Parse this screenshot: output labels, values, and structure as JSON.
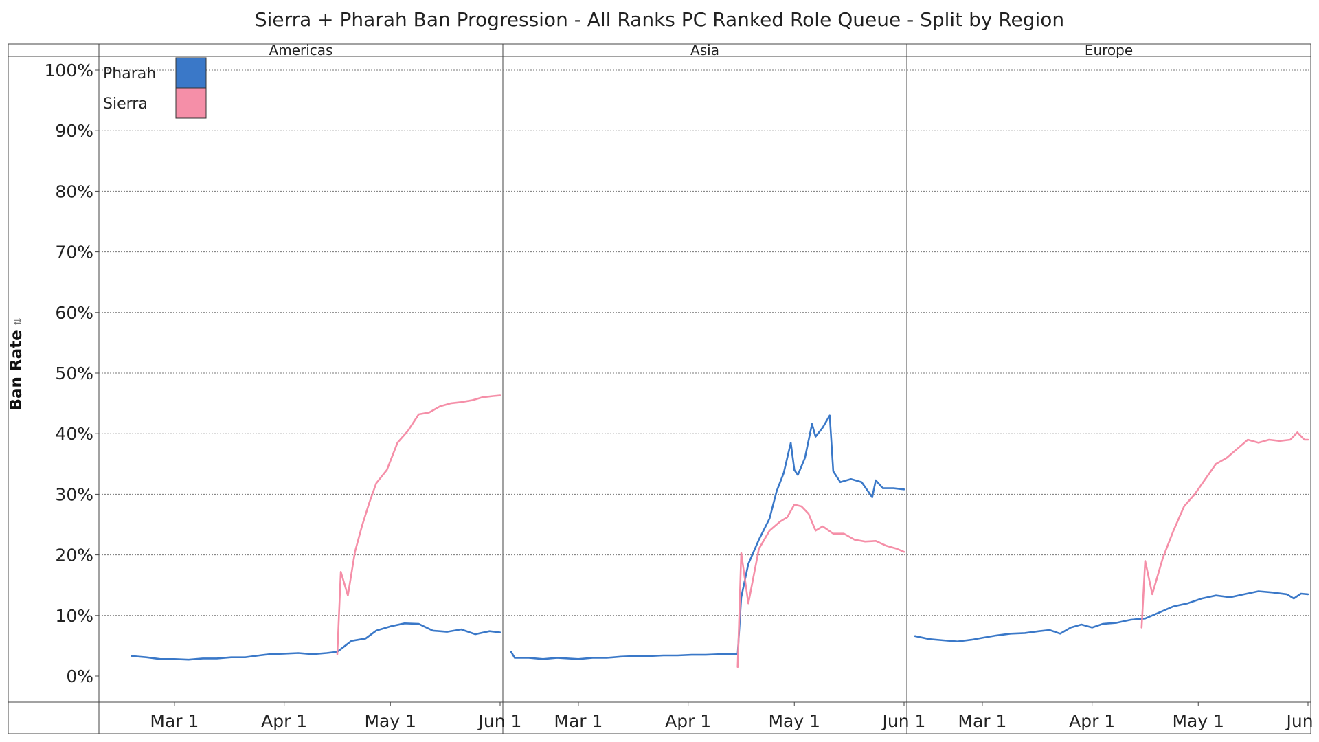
{
  "chart_data": {
    "type": "line",
    "title": "Sierra + Pharah Ban Progression - All Ranks PC Ranked Role Queue - Split by Region",
    "ylabel": "Ban Rate",
    "ylim": [
      0,
      100
    ],
    "yticks": [
      0,
      10,
      20,
      30,
      40,
      50,
      60,
      70,
      80,
      90,
      100
    ],
    "ytick_labels": [
      "0%",
      "10%",
      "20%",
      "30%",
      "40%",
      "50%",
      "60%",
      "70%",
      "80%",
      "90%",
      "100%"
    ],
    "x_start": "Feb 10",
    "x_end": "Jun 1",
    "xticks": [
      "Mar 1",
      "Apr 1",
      "May 1",
      "Jun 1"
    ],
    "gridlines": "horizontal dotted",
    "legend": {
      "position": "top-left",
      "entries": [
        {
          "name": "Pharah",
          "color": "#3a78c8"
        },
        {
          "name": "Sierra",
          "color": "#f58fa8"
        }
      ]
    },
    "panels": [
      {
        "region": "Americas",
        "series": [
          {
            "name": "Pharah",
            "color": "#3a78c8",
            "points": [
              [
                "Feb 17",
                3.3
              ],
              [
                "Feb 21",
                3.1
              ],
              [
                "Feb 25",
                2.8
              ],
              [
                "Mar 1",
                2.8
              ],
              [
                "Mar 5",
                2.7
              ],
              [
                "Mar 9",
                2.9
              ],
              [
                "Mar 13",
                2.9
              ],
              [
                "Mar 17",
                3.1
              ],
              [
                "Mar 21",
                3.1
              ],
              [
                "Mar 25",
                3.4
              ],
              [
                "Mar 28",
                3.6
              ],
              [
                "Apr 1",
                3.7
              ],
              [
                "Apr 5",
                3.8
              ],
              [
                "Apr 9",
                3.6
              ],
              [
                "Apr 13",
                3.8
              ],
              [
                "Apr 16",
                4.0
              ],
              [
                "Apr 20",
                5.8
              ],
              [
                "Apr 24",
                6.2
              ],
              [
                "Apr 27",
                7.5
              ],
              [
                "May 1",
                8.2
              ],
              [
                "May 5",
                8.7
              ],
              [
                "May 9",
                8.6
              ],
              [
                "May 13",
                7.5
              ],
              [
                "May 17",
                7.3
              ],
              [
                "May 21",
                7.7
              ],
              [
                "May 25",
                6.9
              ],
              [
                "May 29",
                7.4
              ],
              [
                "Jun 1",
                7.2
              ]
            ]
          },
          {
            "name": "Sierra",
            "color": "#f58fa8",
            "points": [
              [
                "Apr 16",
                3.6
              ],
              [
                "Apr 17",
                17.2
              ],
              [
                "Apr 19",
                13.3
              ],
              [
                "Apr 21",
                20.5
              ],
              [
                "Apr 23",
                24.8
              ],
              [
                "Apr 25",
                28.5
              ],
              [
                "Apr 27",
                31.8
              ],
              [
                "Apr 30",
                34.0
              ],
              [
                "May 3",
                38.5
              ],
              [
                "May 6",
                40.5
              ],
              [
                "May 9",
                43.2
              ],
              [
                "May 12",
                43.5
              ],
              [
                "May 15",
                44.5
              ],
              [
                "May 18",
                45.0
              ],
              [
                "May 21",
                45.2
              ],
              [
                "May 24",
                45.5
              ],
              [
                "May 27",
                46.0
              ],
              [
                "May 30",
                46.2
              ],
              [
                "Jun 1",
                46.3
              ]
            ]
          }
        ]
      },
      {
        "region": "Asia",
        "series": [
          {
            "name": "Pharah",
            "color": "#3a78c8",
            "points": [
              [
                "Feb 10",
                4.0
              ],
              [
                "Feb 11",
                3.0
              ],
              [
                "Feb 15",
                3.0
              ],
              [
                "Feb 19",
                2.8
              ],
              [
                "Feb 23",
                3.0
              ],
              [
                "Mar 1",
                2.8
              ],
              [
                "Mar 5",
                3.0
              ],
              [
                "Mar 9",
                3.0
              ],
              [
                "Mar 13",
                3.2
              ],
              [
                "Mar 17",
                3.3
              ],
              [
                "Mar 21",
                3.3
              ],
              [
                "Mar 25",
                3.4
              ],
              [
                "Mar 29",
                3.4
              ],
              [
                "Apr 2",
                3.5
              ],
              [
                "Apr 6",
                3.5
              ],
              [
                "Apr 10",
                3.6
              ],
              [
                "Apr 15",
                3.6
              ],
              [
                "Apr 16",
                13.0
              ],
              [
                "Apr 18",
                18.5
              ],
              [
                "Apr 21",
                22.5
              ],
              [
                "Apr 24",
                26.0
              ],
              [
                "Apr 26",
                30.5
              ],
              [
                "Apr 28",
                33.5
              ],
              [
                "Apr 30",
                38.5
              ],
              [
                "May 1",
                34.0
              ],
              [
                "May 2",
                33.2
              ],
              [
                "May 4",
                36.0
              ],
              [
                "May 6",
                41.6
              ],
              [
                "May 7",
                39.5
              ],
              [
                "May 9",
                41.0
              ],
              [
                "May 11",
                43.0
              ],
              [
                "May 12",
                33.8
              ],
              [
                "May 14",
                32.0
              ],
              [
                "May 17",
                32.5
              ],
              [
                "May 20",
                32.0
              ],
              [
                "May 23",
                29.5
              ],
              [
                "May 24",
                32.3
              ],
              [
                "May 26",
                31.0
              ],
              [
                "May 29",
                31.0
              ],
              [
                "Jun 1",
                30.8
              ]
            ]
          },
          {
            "name": "Sierra",
            "color": "#f58fa8",
            "points": [
              [
                "Apr 15",
                1.5
              ],
              [
                "Apr 16",
                20.3
              ],
              [
                "Apr 18",
                12.0
              ],
              [
                "Apr 21",
                21.0
              ],
              [
                "Apr 24",
                24.0
              ],
              [
                "Apr 27",
                25.5
              ],
              [
                "Apr 29",
                26.2
              ],
              [
                "May 1",
                28.3
              ],
              [
                "May 3",
                28.0
              ],
              [
                "May 5",
                26.8
              ],
              [
                "May 7",
                24.0
              ],
              [
                "May 9",
                24.7
              ],
              [
                "May 12",
                23.5
              ],
              [
                "May 15",
                23.5
              ],
              [
                "May 18",
                22.5
              ],
              [
                "May 21",
                22.2
              ],
              [
                "May 24",
                22.3
              ],
              [
                "May 27",
                21.5
              ],
              [
                "May 30",
                21.0
              ],
              [
                "Jun 1",
                20.5
              ]
            ]
          }
        ]
      },
      {
        "region": "Europe",
        "series": [
          {
            "name": "Pharah",
            "color": "#3a78c8",
            "points": [
              [
                "Feb 10",
                6.6
              ],
              [
                "Feb 14",
                6.1
              ],
              [
                "Feb 18",
                5.9
              ],
              [
                "Feb 22",
                5.7
              ],
              [
                "Feb 26",
                6.0
              ],
              [
                "Mar 1",
                6.3
              ],
              [
                "Mar 5",
                6.7
              ],
              [
                "Mar 9",
                7.0
              ],
              [
                "Mar 13",
                7.1
              ],
              [
                "Mar 17",
                7.4
              ],
              [
                "Mar 20",
                7.6
              ],
              [
                "Mar 23",
                7.0
              ],
              [
                "Mar 26",
                8.0
              ],
              [
                "Mar 29",
                8.5
              ],
              [
                "Apr 1",
                8.0
              ],
              [
                "Apr 4",
                8.6
              ],
              [
                "Apr 8",
                8.8
              ],
              [
                "Apr 12",
                9.3
              ],
              [
                "Apr 16",
                9.5
              ],
              [
                "Apr 20",
                10.5
              ],
              [
                "Apr 24",
                11.5
              ],
              [
                "Apr 28",
                12.0
              ],
              [
                "May 2",
                12.8
              ],
              [
                "May 6",
                13.3
              ],
              [
                "May 10",
                13.0
              ],
              [
                "May 14",
                13.5
              ],
              [
                "May 18",
                14.0
              ],
              [
                "May 22",
                13.8
              ],
              [
                "May 26",
                13.5
              ],
              [
                "May 28",
                12.8
              ],
              [
                "May 30",
                13.6
              ],
              [
                "Jun 1",
                13.5
              ]
            ]
          },
          {
            "name": "Sierra",
            "color": "#f58fa8",
            "points": [
              [
                "Apr 15",
                8.0
              ],
              [
                "Apr 16",
                19.0
              ],
              [
                "Apr 18",
                13.5
              ],
              [
                "Apr 21",
                19.5
              ],
              [
                "Apr 24",
                24.0
              ],
              [
                "Apr 27",
                28.0
              ],
              [
                "Apr 30",
                30.0
              ],
              [
                "May 3",
                32.5
              ],
              [
                "May 6",
                35.0
              ],
              [
                "May 9",
                36.0
              ],
              [
                "May 12",
                37.5
              ],
              [
                "May 15",
                39.0
              ],
              [
                "May 18",
                38.5
              ],
              [
                "May 21",
                39.0
              ],
              [
                "May 24",
                38.8
              ],
              [
                "May 27",
                39.0
              ],
              [
                "May 29",
                40.2
              ],
              [
                "May 31",
                39.0
              ],
              [
                "Jun 1",
                39.0
              ]
            ]
          }
        ]
      }
    ]
  }
}
